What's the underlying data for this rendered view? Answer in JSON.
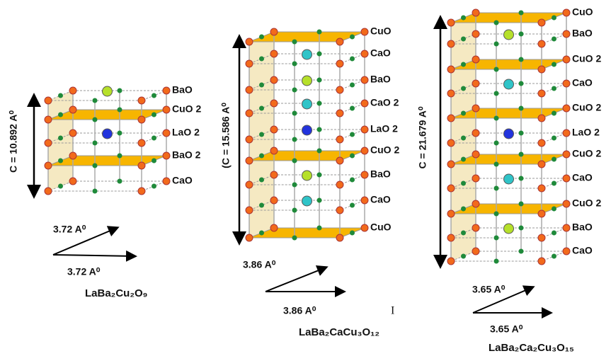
{
  "structures": [
    {
      "formula": "LaBa₂Cu₂O₉",
      "c_label": "C = 10.892 A⁰",
      "a_label": "3.72 A⁰",
      "b_label": "3.72 A⁰",
      "layers": [
        "BaO",
        "CuO 2",
        "LaO 2",
        "BaO 2",
        "CaO"
      ]
    },
    {
      "formula": "LaBa₂CaCu₃O₁₂",
      "c_label": "(C = 15.586 A⁰",
      "a_label": "3.86 A⁰",
      "b_label": "3.86 A⁰",
      "layers": [
        "CuO",
        "CaO",
        "BaO",
        "CaO 2",
        "LaO 2",
        "CuO 2",
        "BaO",
        "CaO",
        "CuO"
      ]
    },
    {
      "formula": "LaBa₂Ca₂Cu₃O₁₅",
      "c_label": "C = 21.679 A⁰",
      "a_label": "3.65 A⁰",
      "b_label": "3.65 A⁰",
      "layers": [
        "CuO",
        "BaO",
        "CuO 2",
        "CaO",
        "CuO 2",
        "LaO 2",
        "CuO 2",
        "CaO",
        "CuO 2",
        "BaO",
        "CaO"
      ]
    }
  ],
  "cursor": "I"
}
